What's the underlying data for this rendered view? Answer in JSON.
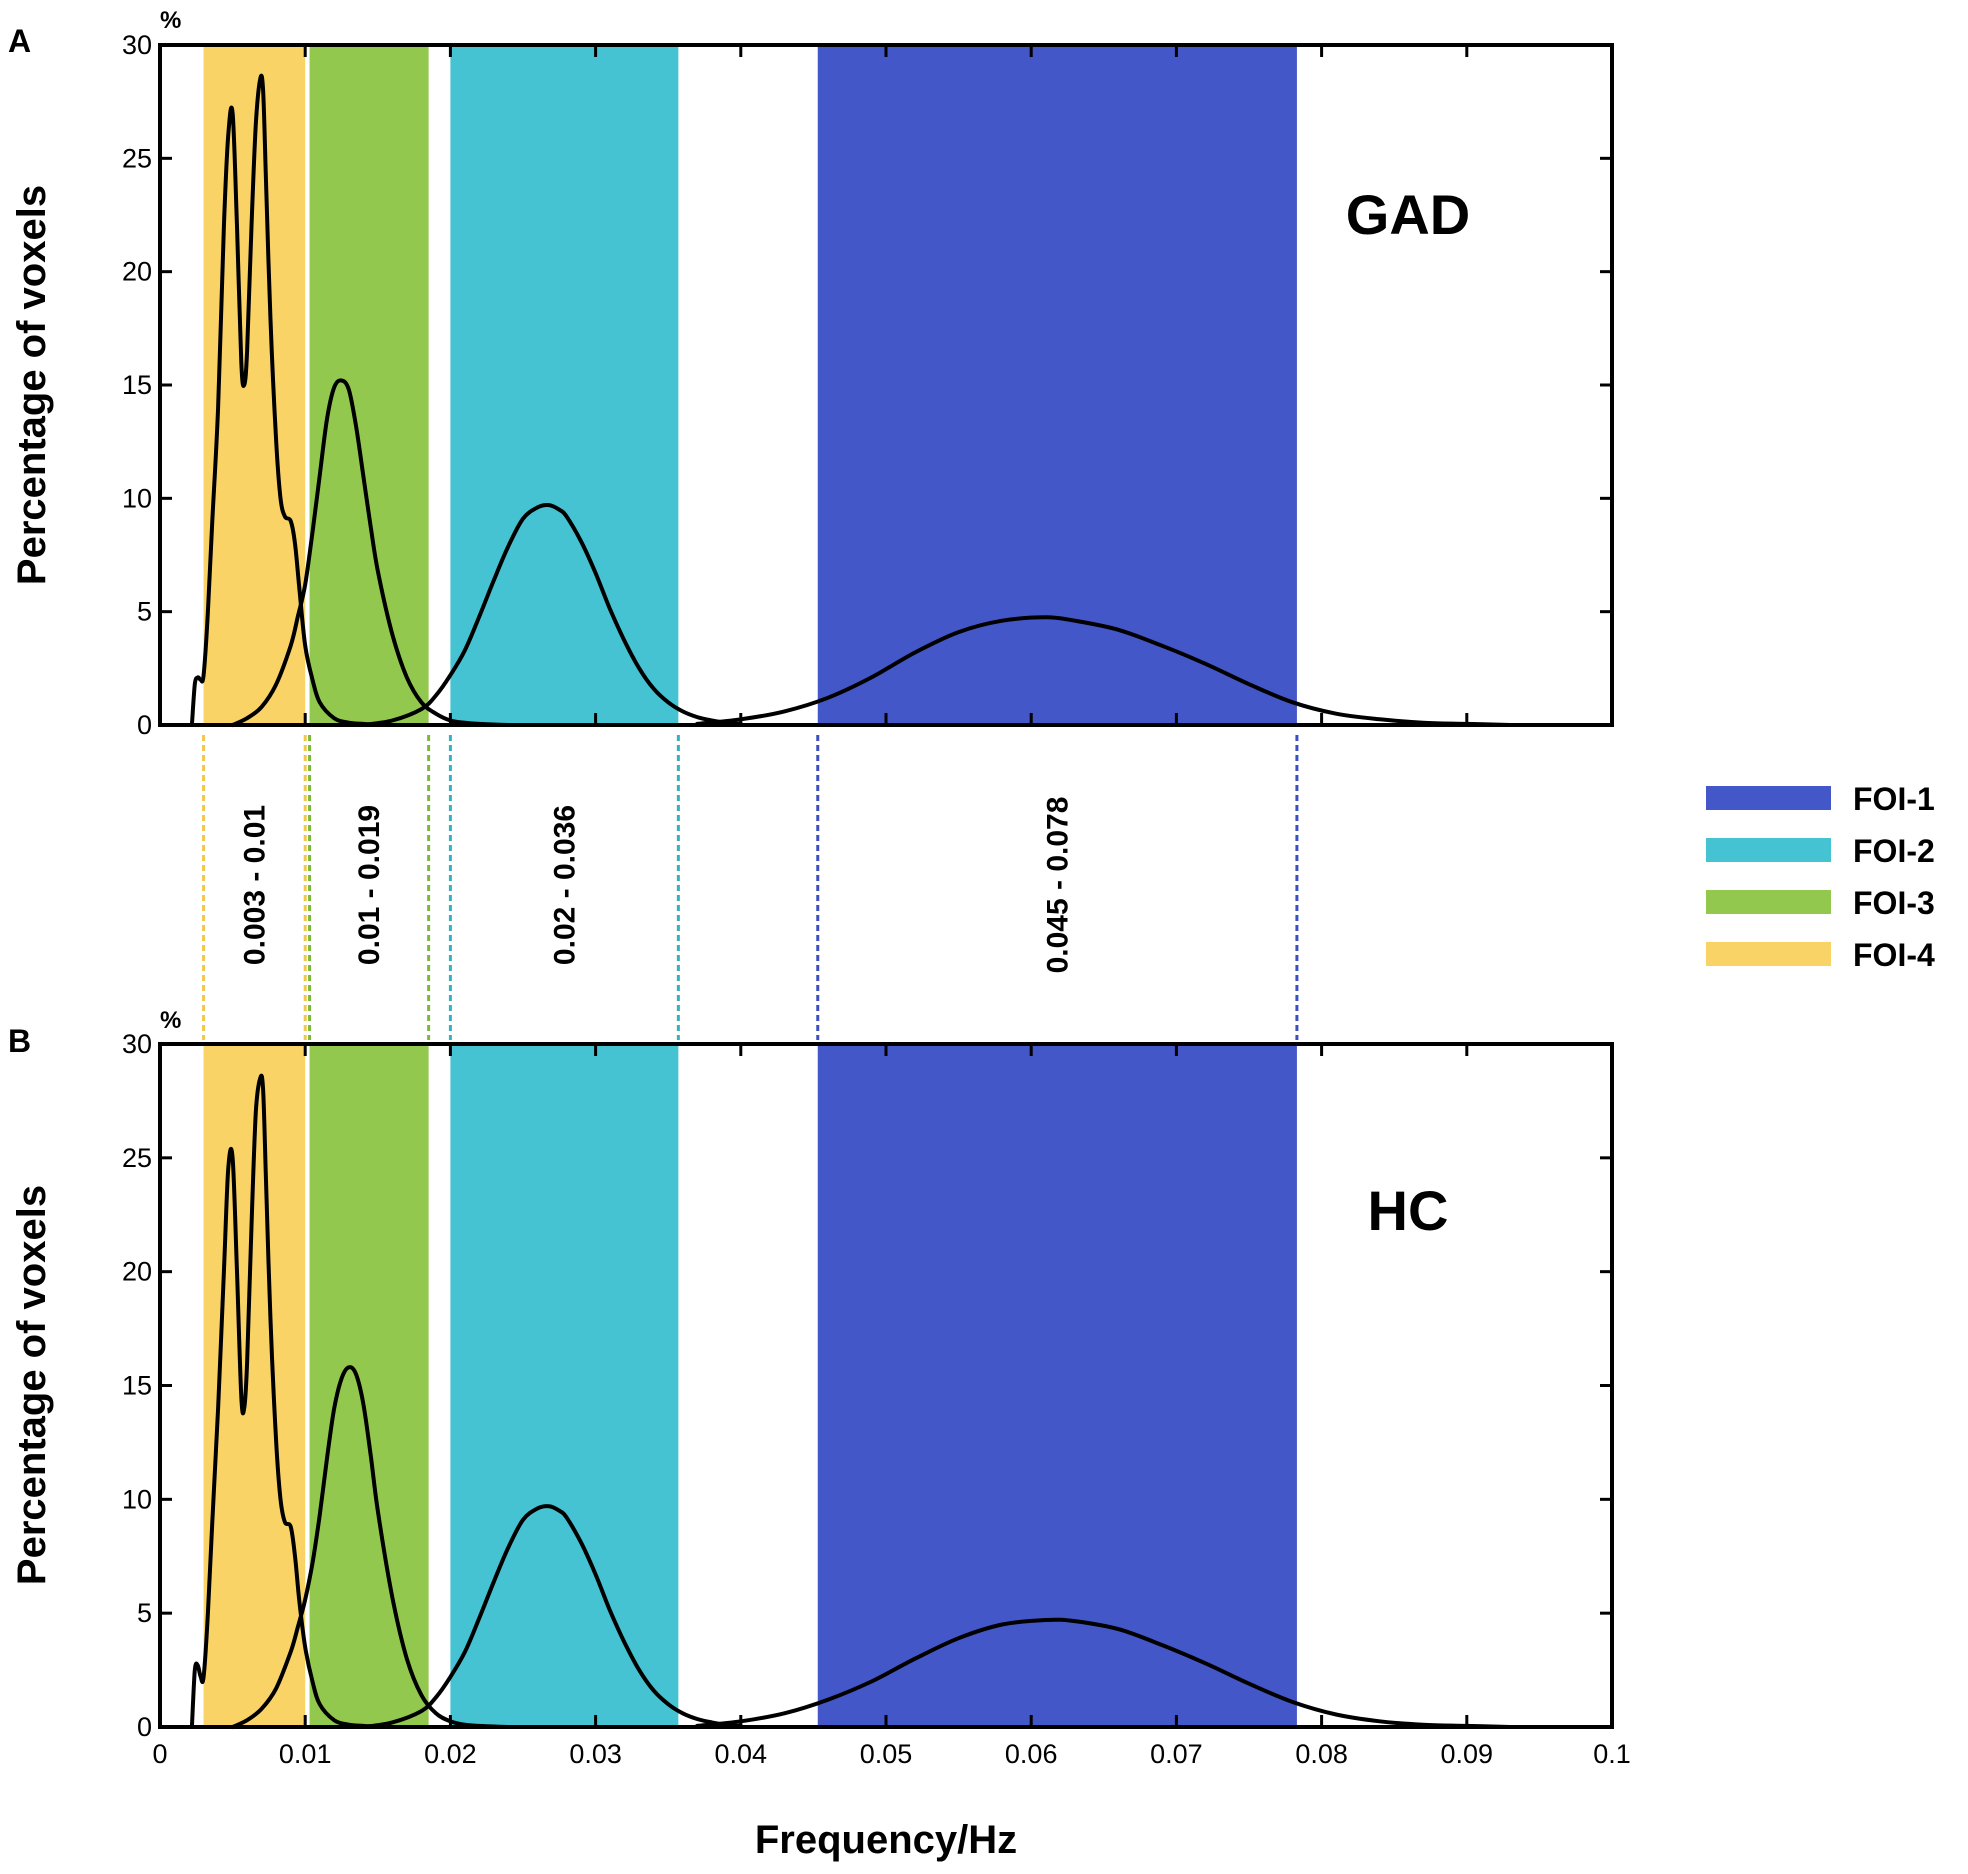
{
  "chart_data": [
    {
      "type": "line",
      "panel": "A",
      "group": "GAD",
      "y_unit": "%",
      "ylabel": "Percentage of voxels",
      "xlim": [
        0,
        0.1
      ],
      "ylim": [
        0,
        30
      ],
      "yticks": [
        "0",
        "5",
        "10",
        "15",
        "20",
        "25",
        "30"
      ],
      "bands": [
        {
          "name": "FOI-4",
          "range": [
            0.003,
            0.01
          ],
          "color": "#FAD367"
        },
        {
          "name": "FOI-3",
          "range": [
            0.0103,
            0.0185
          ],
          "color": "#93C84E"
        },
        {
          "name": "FOI-2",
          "range": [
            0.02,
            0.0357
          ],
          "color": "#45C3D2"
        },
        {
          "name": "FOI-1",
          "range": [
            0.0453,
            0.0783
          ],
          "color": "#4357C8"
        }
      ],
      "series": [
        {
          "name": "FOI-4 distribution",
          "x": [
            0.0022,
            0.0024,
            0.0026,
            0.0028,
            0.003,
            0.0033,
            0.0036,
            0.004,
            0.0044,
            0.0047,
            0.005,
            0.0053,
            0.0056,
            0.0058,
            0.006,
            0.0063,
            0.0066,
            0.0069,
            0.0071,
            0.0073,
            0.0076,
            0.008,
            0.0083,
            0.0086,
            0.009,
            0.0093,
            0.0096,
            0.01,
            0.0105,
            0.011,
            0.012,
            0.013,
            0.014,
            0.015
          ],
          "y": [
            0,
            1.8,
            2.1,
            2,
            2.2,
            5,
            9,
            14,
            22,
            26,
            27,
            22,
            16,
            15,
            16.5,
            22,
            26.5,
            28.5,
            28,
            24,
            18,
            12.5,
            10,
            9.2,
            9,
            8,
            6,
            3.5,
            2,
            1,
            0.3,
            0.1,
            0.05,
            0
          ]
        },
        {
          "name": "FOI-3 distribution",
          "x": [
            0.005,
            0.006,
            0.007,
            0.008,
            0.009,
            0.0095,
            0.01,
            0.0105,
            0.011,
            0.0115,
            0.012,
            0.0125,
            0.013,
            0.0135,
            0.014,
            0.0145,
            0.015,
            0.016,
            0.017,
            0.018,
            0.019,
            0.02,
            0.021,
            0.022,
            0.023,
            0.024
          ],
          "y": [
            0,
            0.3,
            0.8,
            1.8,
            3.5,
            4.8,
            6.2,
            8.5,
            11,
            13.5,
            14.9,
            15.2,
            14.8,
            13.2,
            11,
            8.8,
            6.8,
            4,
            2.1,
            1,
            0.5,
            0.2,
            0.1,
            0.05,
            0.02,
            0
          ]
        },
        {
          "name": "FOI-2 distribution",
          "x": [
            0.014,
            0.016,
            0.018,
            0.019,
            0.02,
            0.021,
            0.022,
            0.023,
            0.024,
            0.025,
            0.026,
            0.0268,
            0.0275,
            0.028,
            0.029,
            0.03,
            0.031,
            0.032,
            0.033,
            0.034,
            0.035,
            0.036,
            0.037,
            0.038,
            0.039,
            0.04
          ],
          "y": [
            0,
            0.2,
            0.7,
            1.3,
            2.2,
            3.3,
            4.8,
            6.4,
            7.9,
            9.1,
            9.6,
            9.7,
            9.5,
            9.2,
            8.1,
            6.7,
            5.1,
            3.7,
            2.5,
            1.6,
            1,
            0.6,
            0.35,
            0.2,
            0.1,
            0.05
          ]
        },
        {
          "name": "FOI-1 distribution",
          "x": [
            0.037,
            0.04,
            0.043,
            0.046,
            0.049,
            0.052,
            0.055,
            0.058,
            0.061,
            0.063,
            0.066,
            0.069,
            0.072,
            0.075,
            0.078,
            0.081,
            0.084,
            0.087,
            0.09,
            0.093
          ],
          "y": [
            0.05,
            0.25,
            0.6,
            1.2,
            2.1,
            3.2,
            4.1,
            4.6,
            4.75,
            4.6,
            4.2,
            3.5,
            2.7,
            1.8,
            1,
            0.5,
            0.25,
            0.1,
            0.05,
            0
          ]
        }
      ]
    },
    {
      "type": "line",
      "panel": "B",
      "group": "HC",
      "y_unit": "%",
      "ylabel": "Percentage of voxels",
      "xlabel": "Frequency/Hz",
      "xlim": [
        0,
        0.1
      ],
      "ylim": [
        0,
        30
      ],
      "xticks": [
        "0",
        "0.01",
        "0.02",
        "0.03",
        "0.04",
        "0.05",
        "0.06",
        "0.07",
        "0.08",
        "0.09",
        "0.1"
      ],
      "yticks": [
        "0",
        "5",
        "10",
        "15",
        "20",
        "25",
        "30"
      ],
      "bands": [
        {
          "name": "FOI-4",
          "range": [
            0.003,
            0.01
          ],
          "color": "#FAD367"
        },
        {
          "name": "FOI-3",
          "range": [
            0.0103,
            0.0185
          ],
          "color": "#93C84E"
        },
        {
          "name": "FOI-2",
          "range": [
            0.02,
            0.0357
          ],
          "color": "#45C3D2"
        },
        {
          "name": "FOI-1",
          "range": [
            0.0453,
            0.0783
          ],
          "color": "#4357C8"
        }
      ],
      "series": [
        {
          "name": "FOI-4 distribution",
          "x": [
            0.0022,
            0.0024,
            0.0026,
            0.0028,
            0.003,
            0.0033,
            0.0036,
            0.004,
            0.0044,
            0.0047,
            0.005,
            0.0053,
            0.0056,
            0.0058,
            0.006,
            0.0063,
            0.0066,
            0.0069,
            0.0071,
            0.0073,
            0.0076,
            0.008,
            0.0083,
            0.0086,
            0.009,
            0.0093,
            0.0096,
            0.01,
            0.0105,
            0.011,
            0.012,
            0.013,
            0.014,
            0.015
          ],
          "y": [
            0,
            2.5,
            2.7,
            2.2,
            2.2,
            5,
            9,
            14,
            20,
            24.5,
            25,
            20,
            14.5,
            14,
            16,
            22,
            27,
            28.5,
            28,
            24,
            18,
            12.5,
            10,
            9,
            8.8,
            7.5,
            5.5,
            3.5,
            2,
            1,
            0.3,
            0.1,
            0.05,
            0
          ]
        },
        {
          "name": "FOI-3 distribution",
          "x": [
            0.005,
            0.006,
            0.007,
            0.008,
            0.009,
            0.0095,
            0.01,
            0.0105,
            0.011,
            0.0115,
            0.012,
            0.0125,
            0.013,
            0.0135,
            0.014,
            0.0145,
            0.015,
            0.016,
            0.017,
            0.018,
            0.019,
            0.02,
            0.021,
            0.022,
            0.023,
            0.024
          ],
          "y": [
            0,
            0.3,
            0.8,
            1.7,
            3.3,
            4.4,
            5.6,
            7.2,
            9.3,
            11.8,
            14,
            15.3,
            15.8,
            15.5,
            14.2,
            12,
            9.5,
            5.7,
            3,
            1.4,
            0.6,
            0.25,
            0.1,
            0.05,
            0.02,
            0
          ]
        },
        {
          "name": "FOI-2 distribution",
          "x": [
            0.014,
            0.016,
            0.018,
            0.019,
            0.02,
            0.021,
            0.022,
            0.023,
            0.024,
            0.025,
            0.026,
            0.0268,
            0.0275,
            0.028,
            0.029,
            0.03,
            0.031,
            0.032,
            0.033,
            0.034,
            0.035,
            0.036,
            0.037,
            0.038,
            0.039,
            0.04
          ],
          "y": [
            0,
            0.2,
            0.7,
            1.3,
            2.2,
            3.3,
            4.8,
            6.4,
            7.9,
            9.1,
            9.6,
            9.7,
            9.5,
            9.2,
            8.1,
            6.7,
            5.1,
            3.7,
            2.5,
            1.6,
            1,
            0.6,
            0.35,
            0.2,
            0.1,
            0.05
          ]
        },
        {
          "name": "FOI-1 distribution",
          "x": [
            0.037,
            0.04,
            0.043,
            0.046,
            0.049,
            0.052,
            0.055,
            0.058,
            0.061,
            0.063,
            0.066,
            0.069,
            0.072,
            0.075,
            0.078,
            0.081,
            0.084,
            0.087,
            0.09,
            0.093
          ],
          "y": [
            0.05,
            0.25,
            0.6,
            1.2,
            2,
            3,
            3.9,
            4.5,
            4.7,
            4.65,
            4.3,
            3.6,
            2.8,
            1.9,
            1.1,
            0.55,
            0.25,
            0.1,
            0.05,
            0
          ]
        }
      ]
    }
  ],
  "band_ranges": [
    {
      "name": "FOI-4",
      "label": "0.003 - 0.01",
      "range": [
        0.003,
        0.01
      ],
      "color": "#FAD367",
      "line_color": "#F2C84A"
    },
    {
      "name": "FOI-3",
      "label": "0.01 - 0.019",
      "range": [
        0.0103,
        0.0185
      ],
      "color": "#93C84E",
      "line_color": "#7DB83A"
    },
    {
      "name": "FOI-2",
      "label": "0.02 - 0.036",
      "range": [
        0.02,
        0.0357
      ],
      "color": "#45C3D2",
      "line_color": "#35B2C2"
    },
    {
      "name": "FOI-1",
      "label": "0.045 - 0.078",
      "range": [
        0.0453,
        0.0783
      ],
      "color": "#4357C8",
      "line_color": "#3B4FC0"
    }
  ],
  "legend": [
    {
      "label": "FOI-1",
      "color": "#4357C8"
    },
    {
      "label": "FOI-2",
      "color": "#45C3D2"
    },
    {
      "label": "FOI-3",
      "color": "#93C84E"
    },
    {
      "label": "FOI-4",
      "color": "#FAD367"
    }
  ]
}
